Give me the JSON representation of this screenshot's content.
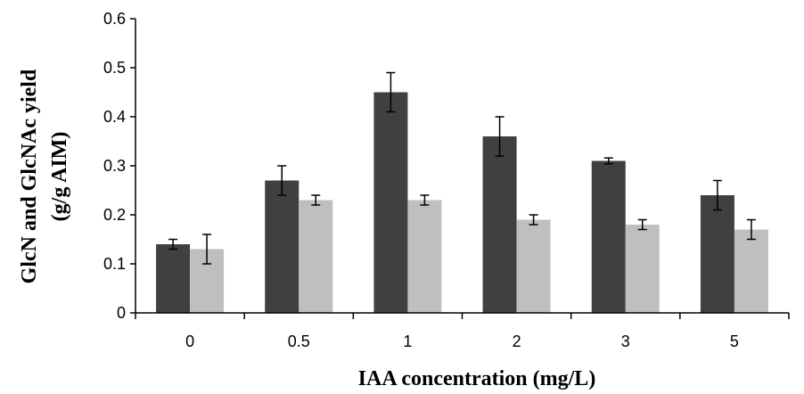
{
  "chart_data": {
    "type": "bar",
    "categories": [
      "0",
      "0.5",
      "1",
      "2",
      "3",
      "5"
    ],
    "series": [
      {
        "color": "#404040",
        "values": [
          0.14,
          0.27,
          0.45,
          0.36,
          0.31,
          0.24
        ],
        "errors": [
          0.01,
          0.03,
          0.04,
          0.04,
          0.006,
          0.03
        ]
      },
      {
        "color": "#bfbfbf",
        "values": [
          0.13,
          0.23,
          0.23,
          0.19,
          0.18,
          0.17
        ],
        "errors": [
          0.03,
          0.01,
          0.01,
          0.01,
          0.01,
          0.02
        ]
      }
    ],
    "xlabel": "IAA concentration (mg/L)",
    "ylabel_line1": "GlcN and GlcNAc yield",
    "ylabel_line2": "(g/g AIM)",
    "ylim": [
      0,
      0.6
    ],
    "yticks": [
      "0",
      "0.1",
      "0.2",
      "0.3",
      "0.4",
      "0.5",
      "0.6"
    ],
    "grid": false,
    "legend": "none"
  }
}
